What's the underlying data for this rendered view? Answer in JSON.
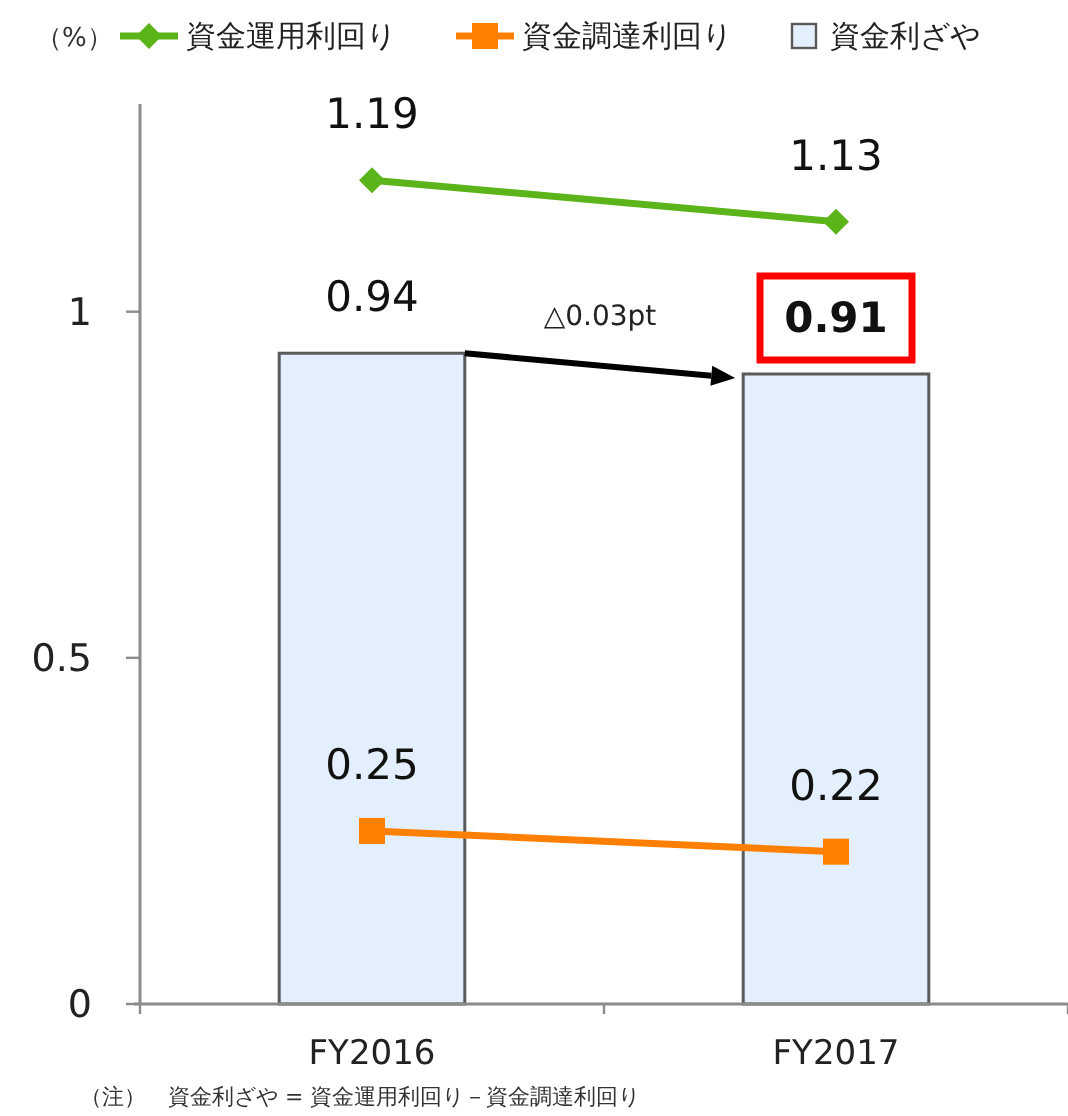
{
  "chart_data": {
    "type": "bar",
    "ylabel": "（%）",
    "categories": [
      "FY2016",
      "FY2017"
    ],
    "series": [
      {
        "name": "資金運用利回り",
        "type": "line",
        "color": "#5cb41b",
        "marker": "diamond",
        "values": [
          1.19,
          1.13
        ]
      },
      {
        "name": "資金調達利回り",
        "type": "line",
        "color": "#ff8000",
        "marker": "square",
        "values": [
          0.25,
          0.22
        ]
      },
      {
        "name": "資金利ざや",
        "color": "#e3effd",
        "values": [
          0.94,
          0.91
        ]
      }
    ],
    "ylim": [
      0,
      1.3
    ],
    "yticks": [
      0,
      0.5,
      1
    ],
    "data_labels": true,
    "legend": "top",
    "annotations": [
      "△0.03pt",
      "（注）　資金利ざや = 資金運用利回り－資金調達利回り"
    ]
  }
}
